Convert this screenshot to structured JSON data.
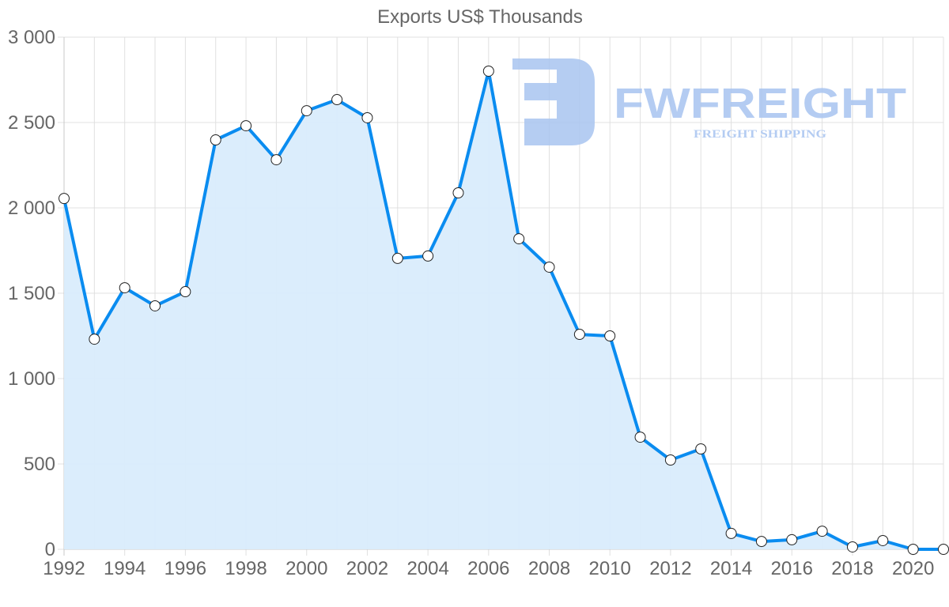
{
  "chart_data": {
    "type": "line",
    "title": "Exports US$ Thousands",
    "xlabel": "",
    "ylabel": "",
    "x": [
      1992,
      1993,
      1994,
      1995,
      1996,
      1997,
      1998,
      1999,
      2000,
      2001,
      2002,
      2003,
      2004,
      2005,
      2006,
      2007,
      2008,
      2009,
      2010,
      2011,
      2012,
      2013,
      2014,
      2015,
      2016,
      2017,
      2018,
      2019,
      2020,
      2021
    ],
    "series": [
      {
        "name": "Exports US$ Thousands",
        "values": [
          2055,
          1231,
          1532,
          1426,
          1509,
          2398,
          2481,
          2282,
          2569,
          2634,
          2528,
          1704,
          1718,
          2088,
          2801,
          1819,
          1653,
          1259,
          1250,
          657,
          523,
          588,
          93,
          46,
          56,
          106,
          14,
          51,
          0,
          0
        ]
      }
    ],
    "ylim": [
      0,
      3000
    ],
    "xlim": [
      1992,
      2021
    ],
    "y_ticks": [
      0,
      500,
      1000,
      1500,
      2000,
      2500,
      3000
    ],
    "y_tick_labels": [
      "0",
      "500",
      "1 000",
      "1 500",
      "2 000",
      "2 500",
      "3 000"
    ],
    "x_tick_labels": [
      "1992",
      "1994",
      "1996",
      "1998",
      "2000",
      "2002",
      "2004",
      "2006",
      "2008",
      "2010",
      "2012",
      "2014",
      "2016",
      "2018",
      "2020"
    ],
    "grid": true,
    "legend": null,
    "area_fill": true,
    "colors": {
      "line": "#0a8cf0",
      "fill": "#d9ecfc",
      "grid": "#e0e0e0",
      "tick_text": "#666666",
      "marker_fill": "#ffffff",
      "marker_stroke": "#222222"
    }
  },
  "watermark": {
    "brand": "FWFREIGHT",
    "tagline": "FREIGHT SHIPPING",
    "color": "#a8c4f0"
  }
}
